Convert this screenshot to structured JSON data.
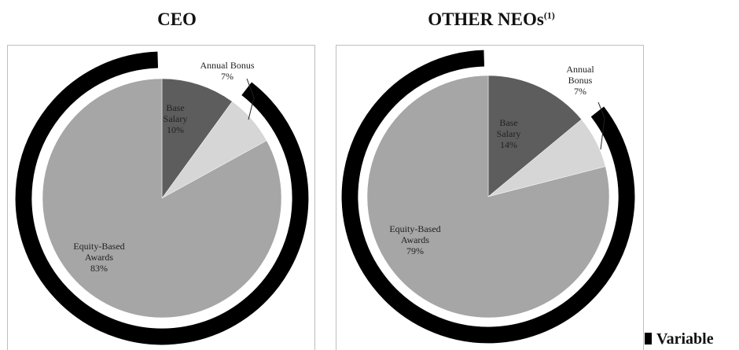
{
  "chart_data": [
    {
      "type": "pie",
      "title": "CEO",
      "categories": [
        "Base Salary",
        "Annual Bonus",
        "Equity-Based Awards"
      ],
      "values": [
        10,
        7,
        83
      ],
      "labels": [
        "10%",
        "7%",
        "83%"
      ],
      "variable_segments": [
        "Annual Bonus",
        "Equity-Based Awards"
      ],
      "colors": [
        "#5d5d5d",
        "#d6d6d6",
        "#a6a6a6"
      ]
    },
    {
      "type": "pie",
      "title": "OTHER NEOs",
      "title_footnote": "(1)",
      "categories": [
        "Base Salary",
        "Annual Bonus",
        "Equity-Based Awards"
      ],
      "values": [
        14,
        7,
        79
      ],
      "labels": [
        "14%",
        "7%",
        "79%"
      ],
      "variable_segments": [
        "Annual Bonus",
        "Equity-Based Awards"
      ],
      "colors": [
        "#5d5d5d",
        "#d6d6d6",
        "#a6a6a6"
      ]
    }
  ],
  "legend": {
    "label": "Variable",
    "color": "#000000"
  }
}
